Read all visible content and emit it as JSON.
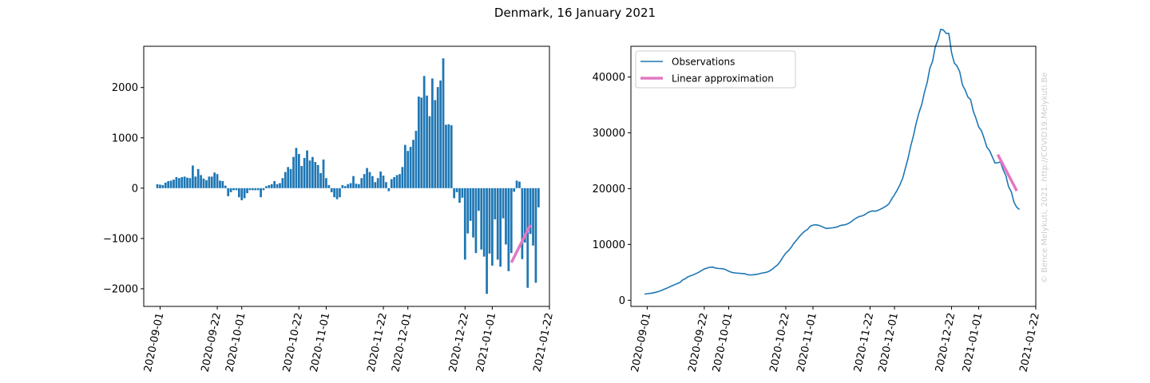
{
  "figure": {
    "title": "Denmark, 16 January 2021",
    "watermark": "© Bence Melykuti, 2021. http://COVID19.Melykuti.Be"
  },
  "colors": {
    "observations": "#1f77b4",
    "approximation": "#e377c2"
  },
  "chart_data": [
    {
      "type": "bar",
      "title": "",
      "xlabel": "",
      "ylabel": "",
      "x_start": "2020-08-31",
      "x_end": "2021-01-15",
      "values": [
        80,
        70,
        60,
        110,
        140,
        150,
        170,
        220,
        200,
        220,
        230,
        210,
        200,
        450,
        230,
        380,
        260,
        190,
        160,
        230,
        230,
        310,
        280,
        150,
        140,
        50,
        -160,
        -80,
        -40,
        -40,
        -180,
        -240,
        -200,
        -100,
        -40,
        -40,
        -40,
        -40,
        -180,
        -40,
        40,
        60,
        80,
        140,
        80,
        100,
        200,
        320,
        420,
        380,
        620,
        800,
        680,
        440,
        600,
        750,
        550,
        620,
        520,
        460,
        300,
        570,
        200,
        60,
        -80,
        -180,
        -220,
        -180,
        60,
        40,
        80,
        100,
        240,
        90,
        80,
        200,
        280,
        400,
        320,
        240,
        120,
        200,
        330,
        250,
        120,
        -60,
        180,
        220,
        260,
        280,
        420,
        860,
        740,
        820,
        960,
        1140,
        1820,
        1800,
        2230,
        1840,
        1430,
        2180,
        1750,
        2010,
        2140,
        2580,
        1260,
        1270,
        1250,
        -200,
        -80,
        -290,
        -190,
        -1420,
        -900,
        -650,
        -980,
        -1290,
        -450,
        -1220,
        -1360,
        -2100,
        -1300,
        -1540,
        -620,
        -1420,
        -1560,
        -600,
        -1120,
        -1650,
        -1290,
        -70,
        150,
        130,
        -1410,
        -1080,
        -1980,
        -910,
        -1140,
        -1880,
        -380
      ],
      "approximation": {
        "x": [
          "2021-01-08",
          "2021-01-15"
        ],
        "y": [
          -1480,
          -730
        ]
      },
      "x_ticks": [
        "2020-09-01",
        "2020-09-22",
        "2020-10-01",
        "2020-10-22",
        "2020-11-01",
        "2020-11-22",
        "2020-12-01",
        "2020-12-22",
        "2021-01-01",
        "2021-01-22"
      ],
      "y_ticks": [
        -2000,
        -1000,
        0,
        1000,
        2000
      ],
      "y_tick_labels": [
        "−2000",
        "−1000",
        "0",
        "1000",
        "2000"
      ],
      "ylim": [
        -2350,
        2820
      ],
      "xlim": [
        "2020-08-26",
        "2021-01-22"
      ],
      "grid": false
    },
    {
      "type": "line",
      "title": "",
      "xlabel": "",
      "ylabel": "",
      "x_start": "2020-08-31",
      "x_end": "2021-01-15",
      "series": [
        {
          "name": "Observations",
          "values": [
            1100,
            1170,
            1230,
            1300,
            1410,
            1550,
            1700,
            1920,
            2120,
            2340,
            2560,
            2770,
            2970,
            3170,
            3620,
            3860,
            4200,
            4390,
            4560,
            4790,
            5020,
            5330,
            5610,
            5760,
            5900,
            5950,
            5790,
            5710,
            5670,
            5630,
            5450,
            5210,
            5010,
            4910,
            4870,
            4830,
            4790,
            4750,
            4570,
            4530,
            4570,
            4630,
            4710,
            4850,
            4930,
            5030,
            5230,
            5550,
            5970,
            6350,
            6970,
            7770,
            8450,
            8890,
            9490,
            10240,
            10790,
            11410,
            11930,
            12390,
            12690,
            13260,
            13460,
            13520,
            13440,
            13260,
            13040,
            12860,
            12920,
            12960,
            13040,
            13140,
            13380,
            13470,
            13550,
            13750,
            14030,
            14430,
            14750,
            14990,
            15110,
            15310,
            15640,
            15890,
            16010,
            15950,
            16130,
            16350,
            16610,
            16890,
            17310,
            18170,
            18910,
            19730,
            20690,
            21830,
            23650,
            25450,
            27680,
            29520,
            31750,
            33590,
            35020,
            37200,
            38950,
            41530,
            42790,
            45370,
            46640,
            48530,
            48420,
            47820,
            47820,
            44360,
            42510,
            41960,
            40940,
            38590,
            37680,
            36420,
            35960,
            33860,
            32560,
            31020,
            30390,
            28970,
            27410,
            26810,
            25690,
            24570,
            24650,
            24780,
            23370,
            22300,
            20320,
            19410,
            17530,
            16650,
            16270
          ]
        },
        {
          "name": "Linear approximation",
          "x": [
            "2021-01-08",
            "2021-01-15"
          ],
          "y": [
            26100,
            19600
          ]
        }
      ],
      "legend": "top-left",
      "x_ticks": [
        "2020-09-01",
        "2020-09-22",
        "2020-10-01",
        "2020-10-22",
        "2020-11-01",
        "2020-11-22",
        "2020-12-01",
        "2020-12-22",
        "2021-01-01",
        "2021-01-22"
      ],
      "y_ticks": [
        0,
        10000,
        20000,
        30000,
        40000
      ],
      "y_tick_labels": [
        "0",
        "10000",
        "20000",
        "30000",
        "40000"
      ],
      "ylim": [
        -1100,
        45500
      ],
      "xlim": [
        "2020-08-26",
        "2021-01-22"
      ],
      "grid": false
    }
  ]
}
